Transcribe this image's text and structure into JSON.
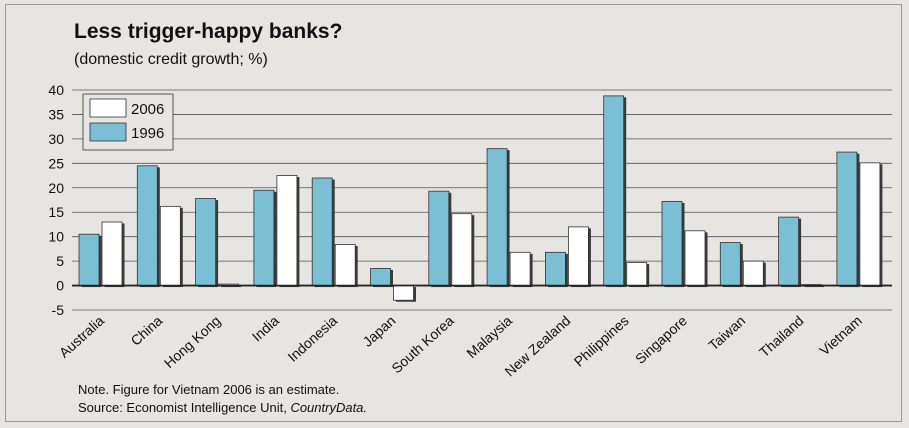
{
  "chart_data": {
    "type": "bar",
    "title": "Less trigger-happy banks?",
    "subtitle": "(domestic credit growth; %)",
    "categories": [
      "Australia",
      "China",
      "Hong Kong",
      "India",
      "Indonesia",
      "Japan",
      "South Korea",
      "Malaysia",
      "New Zealand",
      "Philippines",
      "Singapore",
      "Taiwan",
      "Thailand",
      "Vietnam"
    ],
    "series": [
      {
        "name": "1996",
        "color": "#7bbfd4",
        "values": [
          10.5,
          24.5,
          17.8,
          19.5,
          22,
          3.5,
          19.3,
          28,
          6.8,
          38.8,
          17.2,
          8.8,
          14,
          27.3
        ]
      },
      {
        "name": "2006",
        "color": "#ffffff",
        "values": [
          13,
          16.2,
          0.3,
          22.5,
          8.4,
          -3,
          14.7,
          6.8,
          12,
          4.7,
          11.2,
          5,
          0.2,
          25.1
        ]
      }
    ],
    "ylim": [
      -5,
      40
    ],
    "yticks": [
      -5,
      0,
      5,
      10,
      15,
      20,
      25,
      30,
      35,
      40
    ],
    "legend": {
      "position": "top-left",
      "order": [
        "2006",
        "1996"
      ]
    },
    "grid": true,
    "note": "Note. Figure for Vietnam 2006 is an estimate.",
    "source_prefix": "Source: Economist Intelligence Unit, ",
    "source_name": "CountryData."
  }
}
